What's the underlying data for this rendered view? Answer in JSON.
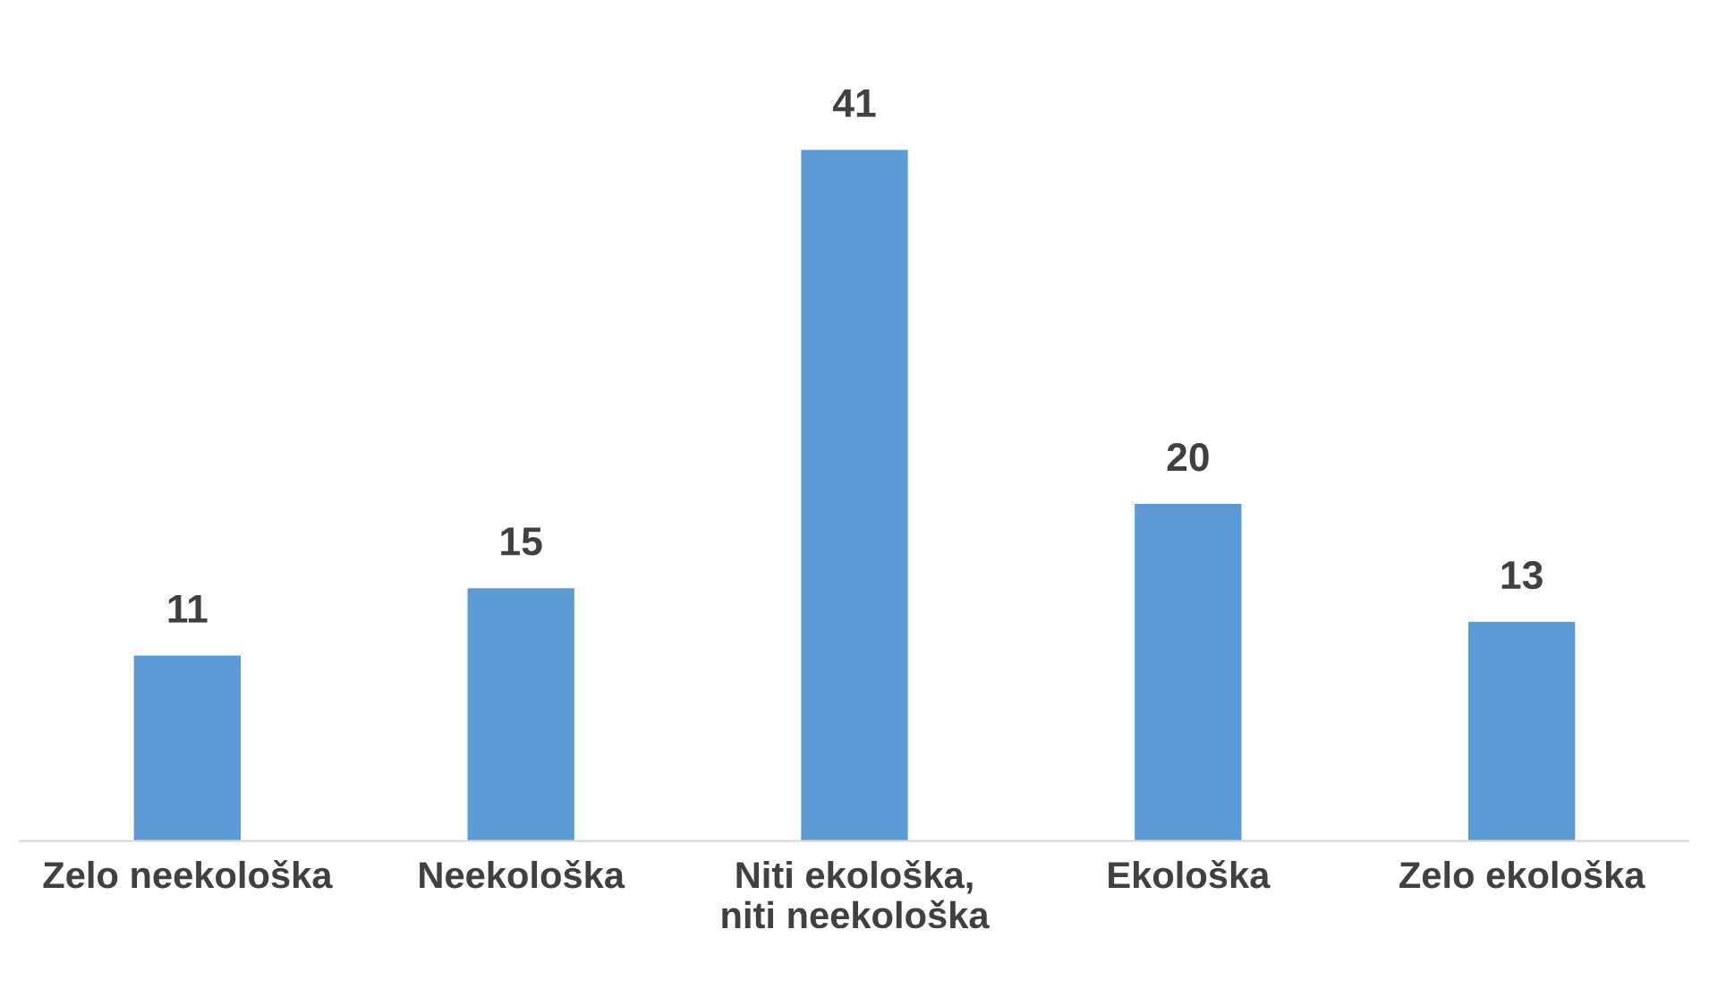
{
  "chart_data": {
    "type": "bar",
    "categories": [
      "Zelo neekološka",
      "Neekološka",
      "Niti ekološka,\nniti neekološka",
      "Ekološka",
      "Zelo ekološka"
    ],
    "values": [
      11,
      15,
      41,
      20,
      13
    ],
    "color": "#5b9bd5",
    "data_labels": true,
    "grid": false,
    "legend": false
  }
}
